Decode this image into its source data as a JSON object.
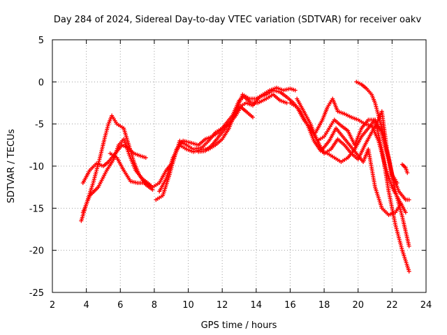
{
  "chart_data": {
    "type": "scatter",
    "title": "Day 284 of 2024, Sidereal Day-to-day VTEC variation (SDTVAR) for receiver oakv",
    "xlabel": "GPS time / hours",
    "ylabel": "SDTVAR / TECUs",
    "xlim": [
      2,
      24
    ],
    "ylim": [
      -25,
      5
    ],
    "xticks": [
      2,
      4,
      6,
      8,
      10,
      12,
      14,
      16,
      18,
      20,
      22,
      24
    ],
    "yticks": [
      5,
      0,
      -5,
      -10,
      -15,
      -20,
      -25
    ],
    "grid": true,
    "marker": "+",
    "color": "#ff0000",
    "series": [
      {
        "name": "track-1",
        "points": [
          [
            3.7,
            -16.5
          ],
          [
            4.0,
            -14.5
          ],
          [
            4.4,
            -12.0
          ],
          [
            4.8,
            -9.0
          ],
          [
            5.1,
            -6.5
          ],
          [
            5.3,
            -5.0
          ],
          [
            5.5,
            -4.0
          ],
          [
            5.8,
            -5.0
          ],
          [
            6.2,
            -5.5
          ],
          [
            6.5,
            -7.5
          ],
          [
            6.8,
            -9.5
          ],
          [
            7.1,
            -11.0
          ],
          [
            7.5,
            -12.2
          ],
          [
            7.9,
            -12.8
          ]
        ]
      },
      {
        "name": "track-2",
        "points": [
          [
            3.8,
            -12.0
          ],
          [
            4.2,
            -10.5
          ],
          [
            4.6,
            -9.7
          ],
          [
            5.0,
            -10.0
          ],
          [
            5.3,
            -9.5
          ],
          [
            5.7,
            -8.5
          ],
          [
            6.1,
            -7.5
          ],
          [
            6.4,
            -7.8
          ],
          [
            6.8,
            -8.5
          ],
          [
            7.2,
            -8.8
          ],
          [
            7.5,
            -9.0
          ]
        ]
      },
      {
        "name": "track-3",
        "points": [
          [
            3.8,
            -15.5
          ],
          [
            4.2,
            -13.5
          ],
          [
            4.7,
            -12.5
          ],
          [
            5.2,
            -10.5
          ],
          [
            5.6,
            -9.2
          ],
          [
            5.9,
            -7.5
          ],
          [
            6.2,
            -6.8
          ],
          [
            6.5,
            -8.5
          ],
          [
            6.9,
            -10.5
          ],
          [
            7.3,
            -11.5
          ],
          [
            7.8,
            -12.3
          ]
        ]
      },
      {
        "name": "track-4",
        "points": [
          [
            5.4,
            -8.5
          ],
          [
            5.8,
            -9.0
          ],
          [
            6.2,
            -10.5
          ],
          [
            6.6,
            -11.8
          ],
          [
            7.0,
            -12.0
          ],
          [
            7.5,
            -12.0
          ],
          [
            7.9,
            -12.5
          ],
          [
            8.3,
            -12.0
          ],
          [
            8.7,
            -10.5
          ],
          [
            9.1,
            -9.5
          ],
          [
            9.5,
            -7.0
          ],
          [
            9.9,
            -7.5
          ],
          [
            10.3,
            -8.0
          ],
          [
            10.8,
            -7.8
          ],
          [
            11.2,
            -7.0
          ],
          [
            11.6,
            -6.0
          ],
          [
            12.0,
            -5.5
          ],
          [
            12.4,
            -5.0
          ],
          [
            12.8,
            -4.0
          ],
          [
            13.1,
            -3.0
          ],
          [
            13.4,
            -3.5
          ],
          [
            13.8,
            -4.2
          ]
        ]
      },
      {
        "name": "track-5",
        "points": [
          [
            8.1,
            -14.0
          ],
          [
            8.5,
            -13.5
          ],
          [
            8.9,
            -11.0
          ],
          [
            9.3,
            -8.0
          ],
          [
            9.7,
            -7.0
          ],
          [
            10.1,
            -7.2
          ],
          [
            10.6,
            -7.5
          ],
          [
            11.0,
            -6.8
          ],
          [
            11.4,
            -6.5
          ],
          [
            11.8,
            -6.0
          ],
          [
            12.2,
            -5.0
          ],
          [
            12.6,
            -4.0
          ],
          [
            13.0,
            -2.2
          ],
          [
            13.3,
            -1.8
          ],
          [
            13.7,
            -2.5
          ],
          [
            14.1,
            -2.5
          ],
          [
            14.6,
            -2.0
          ],
          [
            15.0,
            -1.5
          ],
          [
            15.4,
            -2.2
          ],
          [
            15.8,
            -2.5
          ]
        ]
      },
      {
        "name": "track-6",
        "points": [
          [
            8.3,
            -13.0
          ],
          [
            8.7,
            -11.5
          ],
          [
            9.1,
            -9.0
          ],
          [
            9.5,
            -7.5
          ],
          [
            9.9,
            -8.0
          ],
          [
            10.3,
            -8.3
          ],
          [
            10.8,
            -8.0
          ],
          [
            11.2,
            -8.0
          ],
          [
            11.6,
            -7.5
          ],
          [
            12.0,
            -6.8
          ],
          [
            12.4,
            -5.5
          ],
          [
            12.8,
            -3.5
          ],
          [
            13.2,
            -1.5
          ],
          [
            13.6,
            -2.0
          ],
          [
            14.0,
            -2.0
          ],
          [
            14.4,
            -1.5
          ],
          [
            14.8,
            -1.0
          ],
          [
            15.2,
            -0.7
          ],
          [
            15.6,
            -1.0
          ],
          [
            16.0,
            -0.8
          ],
          [
            16.3,
            -1.0
          ]
        ]
      },
      {
        "name": "track-7",
        "points": [
          [
            10.6,
            -8.3
          ],
          [
            11.0,
            -8.2
          ],
          [
            11.4,
            -7.5
          ],
          [
            11.8,
            -6.5
          ],
          [
            12.2,
            -5.5
          ],
          [
            12.6,
            -4.5
          ],
          [
            13.0,
            -3.0
          ],
          [
            13.4,
            -2.5
          ],
          [
            13.8,
            -2.8
          ],
          [
            14.2,
            -1.8
          ],
          [
            14.6,
            -1.5
          ],
          [
            15.0,
            -1.0
          ],
          [
            15.4,
            -1.2
          ],
          [
            15.8,
            -1.8
          ],
          [
            16.2,
            -2.5
          ],
          [
            16.6,
            -3.5
          ],
          [
            17.0,
            -5.0
          ],
          [
            17.4,
            -7.0
          ],
          [
            17.8,
            -8.2
          ],
          [
            18.2,
            -8.5
          ],
          [
            18.6,
            -9.0
          ],
          [
            19.0,
            -9.5
          ],
          [
            19.4,
            -9.0
          ],
          [
            19.8,
            -8.0
          ],
          [
            20.2,
            -6.5
          ],
          [
            20.6,
            -5.5
          ],
          [
            21.0,
            -4.5
          ],
          [
            21.4,
            -8.0
          ],
          [
            21.8,
            -13.0
          ],
          [
            22.2,
            -17.0
          ],
          [
            22.6,
            -20.0
          ],
          [
            23.0,
            -22.5
          ]
        ]
      },
      {
        "name": "track-8",
        "points": [
          [
            16.0,
            -2.5
          ],
          [
            16.4,
            -3.0
          ],
          [
            16.8,
            -4.5
          ],
          [
            17.2,
            -5.5
          ],
          [
            17.6,
            -7.0
          ],
          [
            18.0,
            -6.5
          ],
          [
            18.3,
            -5.5
          ],
          [
            18.6,
            -4.5
          ],
          [
            19.0,
            -5.2
          ],
          [
            19.4,
            -5.8
          ],
          [
            19.8,
            -7.5
          ],
          [
            20.2,
            -5.5
          ],
          [
            20.6,
            -4.5
          ],
          [
            21.0,
            -4.5
          ],
          [
            21.4,
            -6.0
          ],
          [
            21.8,
            -9.0
          ],
          [
            22.2,
            -13.0
          ],
          [
            22.6,
            -16.0
          ],
          [
            23.0,
            -19.5
          ]
        ]
      },
      {
        "name": "track-9",
        "points": [
          [
            16.4,
            -2.0
          ],
          [
            16.8,
            -3.5
          ],
          [
            17.2,
            -5.0
          ],
          [
            17.6,
            -7.0
          ],
          [
            18.0,
            -8.5
          ],
          [
            18.4,
            -8.0
          ],
          [
            18.8,
            -6.8
          ],
          [
            19.2,
            -7.5
          ],
          [
            19.6,
            -8.5
          ],
          [
            20.0,
            -9.2
          ],
          [
            20.4,
            -7.5
          ],
          [
            20.8,
            -6.0
          ],
          [
            21.2,
            -4.5
          ],
          [
            21.4,
            -3.5
          ],
          [
            21.7,
            -8.0
          ],
          [
            22.0,
            -11.0
          ],
          [
            22.4,
            -13.0
          ],
          [
            22.8,
            -14.0
          ],
          [
            23.0,
            -14.0
          ]
        ]
      },
      {
        "name": "track-10",
        "points": [
          [
            17.5,
            -6.0
          ],
          [
            17.9,
            -4.5
          ],
          [
            18.2,
            -3.0
          ],
          [
            18.5,
            -2.0
          ],
          [
            18.8,
            -3.5
          ],
          [
            19.2,
            -3.8
          ],
          [
            19.6,
            -4.2
          ],
          [
            20.0,
            -4.5
          ],
          [
            20.4,
            -5.0
          ],
          [
            20.8,
            -5.2
          ],
          [
            21.2,
            -7.0
          ],
          [
            21.6,
            -10.0
          ],
          [
            22.0,
            -12.5
          ],
          [
            22.4,
            -14.0
          ],
          [
            22.8,
            -15.5
          ]
        ]
      },
      {
        "name": "track-11",
        "points": [
          [
            17.9,
            -8.0
          ],
          [
            18.3,
            -7.0
          ],
          [
            18.7,
            -5.5
          ],
          [
            19.1,
            -6.5
          ],
          [
            19.5,
            -7.5
          ],
          [
            19.9,
            -8.5
          ],
          [
            20.3,
            -9.5
          ],
          [
            20.6,
            -8.0
          ],
          [
            21.0,
            -12.5
          ],
          [
            21.4,
            -15.0
          ],
          [
            21.8,
            -15.8
          ],
          [
            22.2,
            -15.5
          ],
          [
            22.5,
            -14.5
          ]
        ]
      },
      {
        "name": "track-12",
        "points": [
          [
            19.9,
            0.0
          ],
          [
            20.2,
            -0.3
          ],
          [
            20.5,
            -0.8
          ],
          [
            20.8,
            -1.5
          ],
          [
            21.0,
            -2.5
          ],
          [
            21.2,
            -4.0
          ],
          [
            21.4,
            -5.5
          ],
          [
            21.7,
            -8.5
          ],
          [
            22.0,
            -11.0
          ],
          [
            22.3,
            -12.0
          ]
        ]
      },
      {
        "name": "track-13",
        "points": [
          [
            22.6,
            -9.8
          ],
          [
            22.8,
            -10.2
          ],
          [
            22.9,
            -10.8
          ]
        ]
      }
    ]
  }
}
